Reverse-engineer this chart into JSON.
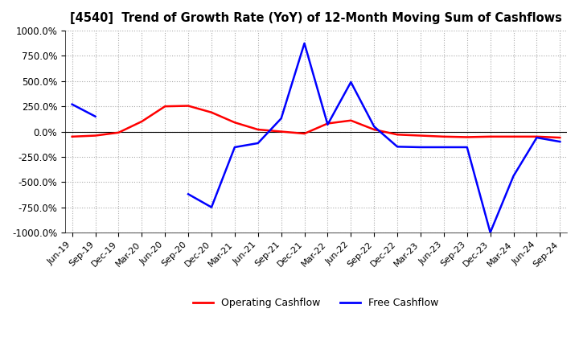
{
  "title": "[4540]  Trend of Growth Rate (YoY) of 12-Month Moving Sum of Cashflows",
  "ylim": [
    -1000,
    1000
  ],
  "yticks": [
    -1000,
    -750,
    -500,
    -250,
    0,
    250,
    500,
    750,
    1000
  ],
  "yticklabels": [
    "-1000.0%",
    "-750.0%",
    "-500.0%",
    "-250.0%",
    "0.0%",
    "250.0%",
    "500.0%",
    "750.0%",
    "1000.0%"
  ],
  "background_color": "#ffffff",
  "grid_color": "#aaaaaa",
  "legend_labels": [
    "Operating Cashflow",
    "Free Cashflow"
  ],
  "x_labels": [
    "Jun-19",
    "Sep-19",
    "Dec-19",
    "Mar-20",
    "Jun-20",
    "Sep-20",
    "Dec-20",
    "Mar-21",
    "Jun-21",
    "Sep-21",
    "Dec-21",
    "Mar-22",
    "Jun-22",
    "Sep-22",
    "Dec-22",
    "Mar-23",
    "Jun-23",
    "Sep-23",
    "Dec-23",
    "Mar-24",
    "Jun-24",
    "Sep-24"
  ],
  "operating_cashflow": [
    -50,
    -40,
    -10,
    100,
    250,
    255,
    190,
    90,
    20,
    0,
    -20,
    80,
    110,
    20,
    -30,
    -40,
    -50,
    -55,
    -50,
    -50,
    -50,
    -60
  ],
  "free_cashflow": [
    270,
    150,
    null,
    null,
    null,
    -620,
    -750,
    -155,
    -115,
    130,
    875,
    70,
    490,
    50,
    -150,
    -155,
    -155,
    -155,
    -1000,
    -440,
    -60,
    -100
  ]
}
